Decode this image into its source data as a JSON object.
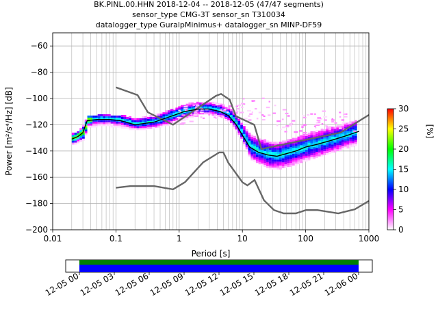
{
  "header": {
    "title_line1": "BK.PINL.00.HHN   2018-12-04 -- 2018-12-05  (47/47 segments)",
    "title_line2": "sensor_type CMG-3T sensor_sn T310034",
    "title_line3": "datalogger_type GuralpMinimus+ datalogger_sn MINP-DF59"
  },
  "chart_data": {
    "type": "heatmap",
    "xlabel": "Period [s]",
    "ylabel": "Power [m²/s⁴/Hz] [dB]",
    "x_scale": "log",
    "xlim": [
      0.01,
      1000
    ],
    "ylim": [
      -200,
      -50
    ],
    "x_ticks": [
      {
        "value": 0.01,
        "label": "0.01"
      },
      {
        "value": 0.1,
        "label": "0.1"
      },
      {
        "value": 1,
        "label": "1"
      },
      {
        "value": 10,
        "label": "10"
      },
      {
        "value": 100,
        "label": "100"
      },
      {
        "value": 1000,
        "label": "1000"
      }
    ],
    "y_ticks": [
      {
        "value": -60,
        "label": "−60"
      },
      {
        "value": -80,
        "label": "−80"
      },
      {
        "value": -100,
        "label": "−100"
      },
      {
        "value": -120,
        "label": "−120"
      },
      {
        "value": -140,
        "label": "−140"
      },
      {
        "value": -160,
        "label": "−160"
      },
      {
        "value": -180,
        "label": "−180"
      },
      {
        "value": -200,
        "label": "−200"
      }
    ],
    "grid": true,
    "colorbar": {
      "label": "[%]",
      "range": [
        0,
        30
      ],
      "ticks": [
        {
          "value": 0,
          "label": "0"
        },
        {
          "value": 5,
          "label": "5"
        },
        {
          "value": 10,
          "label": "10"
        },
        {
          "value": 15,
          "label": "15"
        },
        {
          "value": 20,
          "label": "20"
        },
        {
          "value": 25,
          "label": "25"
        },
        {
          "value": 30,
          "label": "30"
        }
      ],
      "colors": [
        "#ffffff",
        "#ff00ff",
        "#0000ff",
        "#00ffff",
        "#00ff00",
        "#ffff00",
        "#ff0000"
      ]
    },
    "nhnm": {
      "periods": [
        0.1,
        0.22,
        0.32,
        0.8,
        3.8,
        4.6,
        6.3,
        7.9,
        15.4,
        20,
        354.8,
        1000
      ],
      "values": [
        -91.5,
        -97.4,
        -110.5,
        -120,
        -98,
        -96.5,
        -101,
        -113.5,
        -120,
        -138.5,
        -126,
        -112.5
      ]
    },
    "nlnm": {
      "periods": [
        0.1,
        0.17,
        0.4,
        0.8,
        1.24,
        2.4,
        4.3,
        5,
        6,
        10,
        12,
        15.6,
        21.9,
        31.6,
        45,
        70,
        101,
        154,
        328,
        600,
        1000
      ],
      "values": [
        -168,
        -166.7,
        -166.7,
        -169.2,
        -163.7,
        -148.6,
        -141.1,
        -141.1,
        -149,
        -163.8,
        -166.2,
        -162.1,
        -177.5,
        -185,
        -187.5,
        -187.5,
        -185,
        -185,
        -187.5,
        -184.4,
        -178
      ]
    },
    "median": {
      "periods": [
        0.02,
        0.025,
        0.03,
        0.035,
        0.05,
        0.08,
        0.12,
        0.2,
        0.4,
        0.7,
        1.2,
        2,
        3,
        4.5,
        6,
        8,
        10,
        13,
        18,
        25,
        35,
        50,
        70,
        100,
        150,
        250,
        400,
        700
      ],
      "values": [
        -131,
        -129,
        -126,
        -117,
        -116,
        -116,
        -117,
        -120,
        -118,
        -114,
        -110,
        -108,
        -108,
        -110,
        -113,
        -120,
        -128,
        -137,
        -141,
        -143,
        -144,
        -142,
        -140,
        -137,
        -135,
        -132,
        -129,
        -125
      ]
    },
    "psd_bands": [
      {
        "periods": [
          0.02,
          0.025,
          0.03,
          0.035,
          0.05,
          0.08,
          0.12,
          0.2,
          0.4,
          0.7,
          1.2,
          2,
          3,
          4.5,
          6,
          8,
          10,
          13,
          18,
          25,
          35,
          50,
          70,
          100,
          150,
          250,
          400,
          650
        ],
        "low": [
          -135,
          -133,
          -131,
          -122,
          -121,
          -121,
          -122,
          -124,
          -122,
          -120,
          -116,
          -112,
          -112,
          -114,
          -118,
          -126,
          -135,
          -146,
          -150,
          -153,
          -154,
          -152,
          -150,
          -147,
          -144,
          -141,
          -138,
          -135
        ],
        "high": [
          -127,
          -125,
          -120,
          -113,
          -113,
          -113,
          -113,
          -116,
          -113,
          -109,
          -105,
          -103,
          -103,
          -105,
          -108,
          -114,
          -121,
          -128,
          -131,
          -133,
          -134,
          -132,
          -130,
          -127,
          -125,
          -122,
          -120,
          -117
        ]
      }
    ],
    "outliers": {
      "periods": [
        0.8,
        1.5,
        6,
        9,
        12,
        15,
        20,
        30,
        40,
        60,
        80,
        120,
        180,
        260,
        400,
        600
      ],
      "upper": [
        -106,
        -104,
        -104,
        -100,
        -99,
        -97,
        -95,
        -100,
        -106,
        -108,
        -114,
        -112,
        -110,
        -108,
        -112,
        -115
      ],
      "lower": [
        -122,
        -118,
        -114,
        -114,
        -118,
        -120,
        -120,
        -124,
        -126,
        -128,
        -128,
        -124,
        -122,
        -122,
        -124,
        -128
      ]
    }
  },
  "timeline": {
    "labels": [
      "12-05 00",
      "12-05 03",
      "12-05 06",
      "12-05 09",
      "12-05 12",
      "12-05 15",
      "12-05 18",
      "12-05 21",
      "12-06 00"
    ]
  }
}
